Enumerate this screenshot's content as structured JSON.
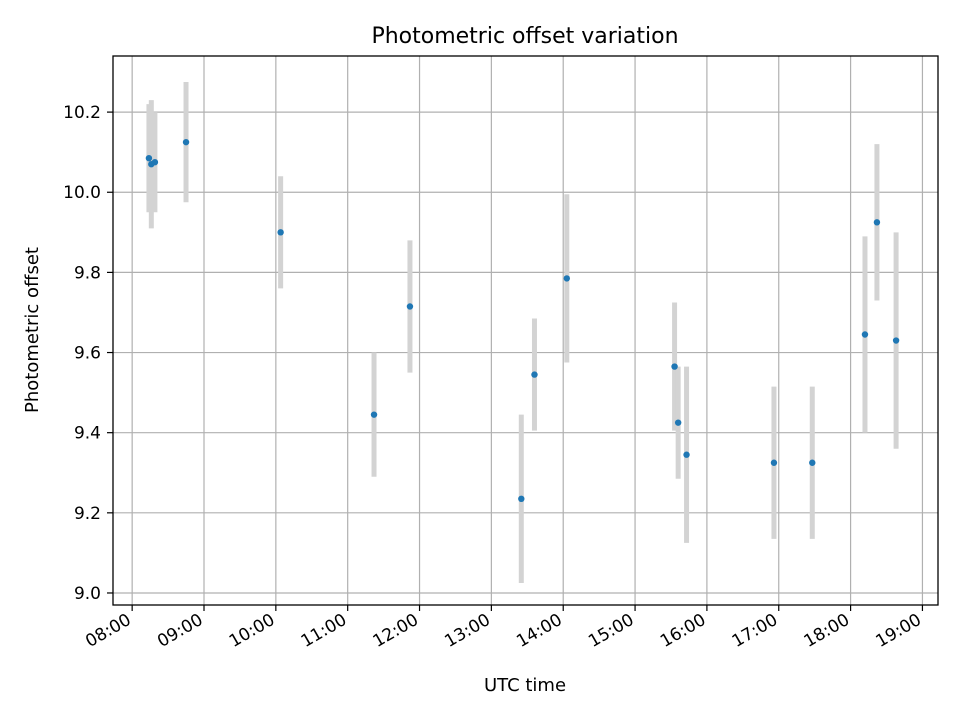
{
  "chart_data": {
    "type": "scatter",
    "title": "Photometric offset variation",
    "xlabel": "UTC time",
    "ylabel": "Photometric offset",
    "xlim": [
      "07:44",
      "19:13"
    ],
    "ylim": [
      8.97,
      10.34
    ],
    "x_ticks": [
      "08:00",
      "09:00",
      "10:00",
      "11:00",
      "12:00",
      "13:00",
      "14:00",
      "15:00",
      "16:00",
      "17:00",
      "18:00",
      "19:00"
    ],
    "y_ticks": [
      9.0,
      9.2,
      9.4,
      9.6,
      9.8,
      10.0,
      10.2
    ],
    "grid": true,
    "colors": {
      "point": "#1f77b4",
      "errorbar": "#d3d3d3"
    },
    "points": [
      {
        "x": "08:14",
        "y": 10.085,
        "err": 0.135
      },
      {
        "x": "08:16",
        "y": 10.07,
        "err": 0.16
      },
      {
        "x": "08:19",
        "y": 10.075,
        "err": 0.125
      },
      {
        "x": "08:45",
        "y": 10.125,
        "err": 0.15
      },
      {
        "x": "10:04",
        "y": 9.9,
        "err": 0.14
      },
      {
        "x": "11:22",
        "y": 9.445,
        "err": 0.155
      },
      {
        "x": "11:52",
        "y": 9.715,
        "err": 0.165
      },
      {
        "x": "13:25",
        "y": 9.235,
        "err": 0.21
      },
      {
        "x": "13:36",
        "y": 9.545,
        "err": 0.14
      },
      {
        "x": "14:03",
        "y": 9.785,
        "err": 0.21
      },
      {
        "x": "15:33",
        "y": 9.565,
        "err": 0.16
      },
      {
        "x": "15:36",
        "y": 9.425,
        "err": 0.14
      },
      {
        "x": "15:43",
        "y": 9.345,
        "err": 0.22
      },
      {
        "x": "16:56",
        "y": 9.325,
        "err": 0.19
      },
      {
        "x": "17:28",
        "y": 9.325,
        "err": 0.19
      },
      {
        "x": "18:12",
        "y": 9.645,
        "err": 0.245
      },
      {
        "x": "18:22",
        "y": 9.925,
        "err": 0.195
      },
      {
        "x": "18:38",
        "y": 9.63,
        "err": 0.27
      }
    ]
  }
}
